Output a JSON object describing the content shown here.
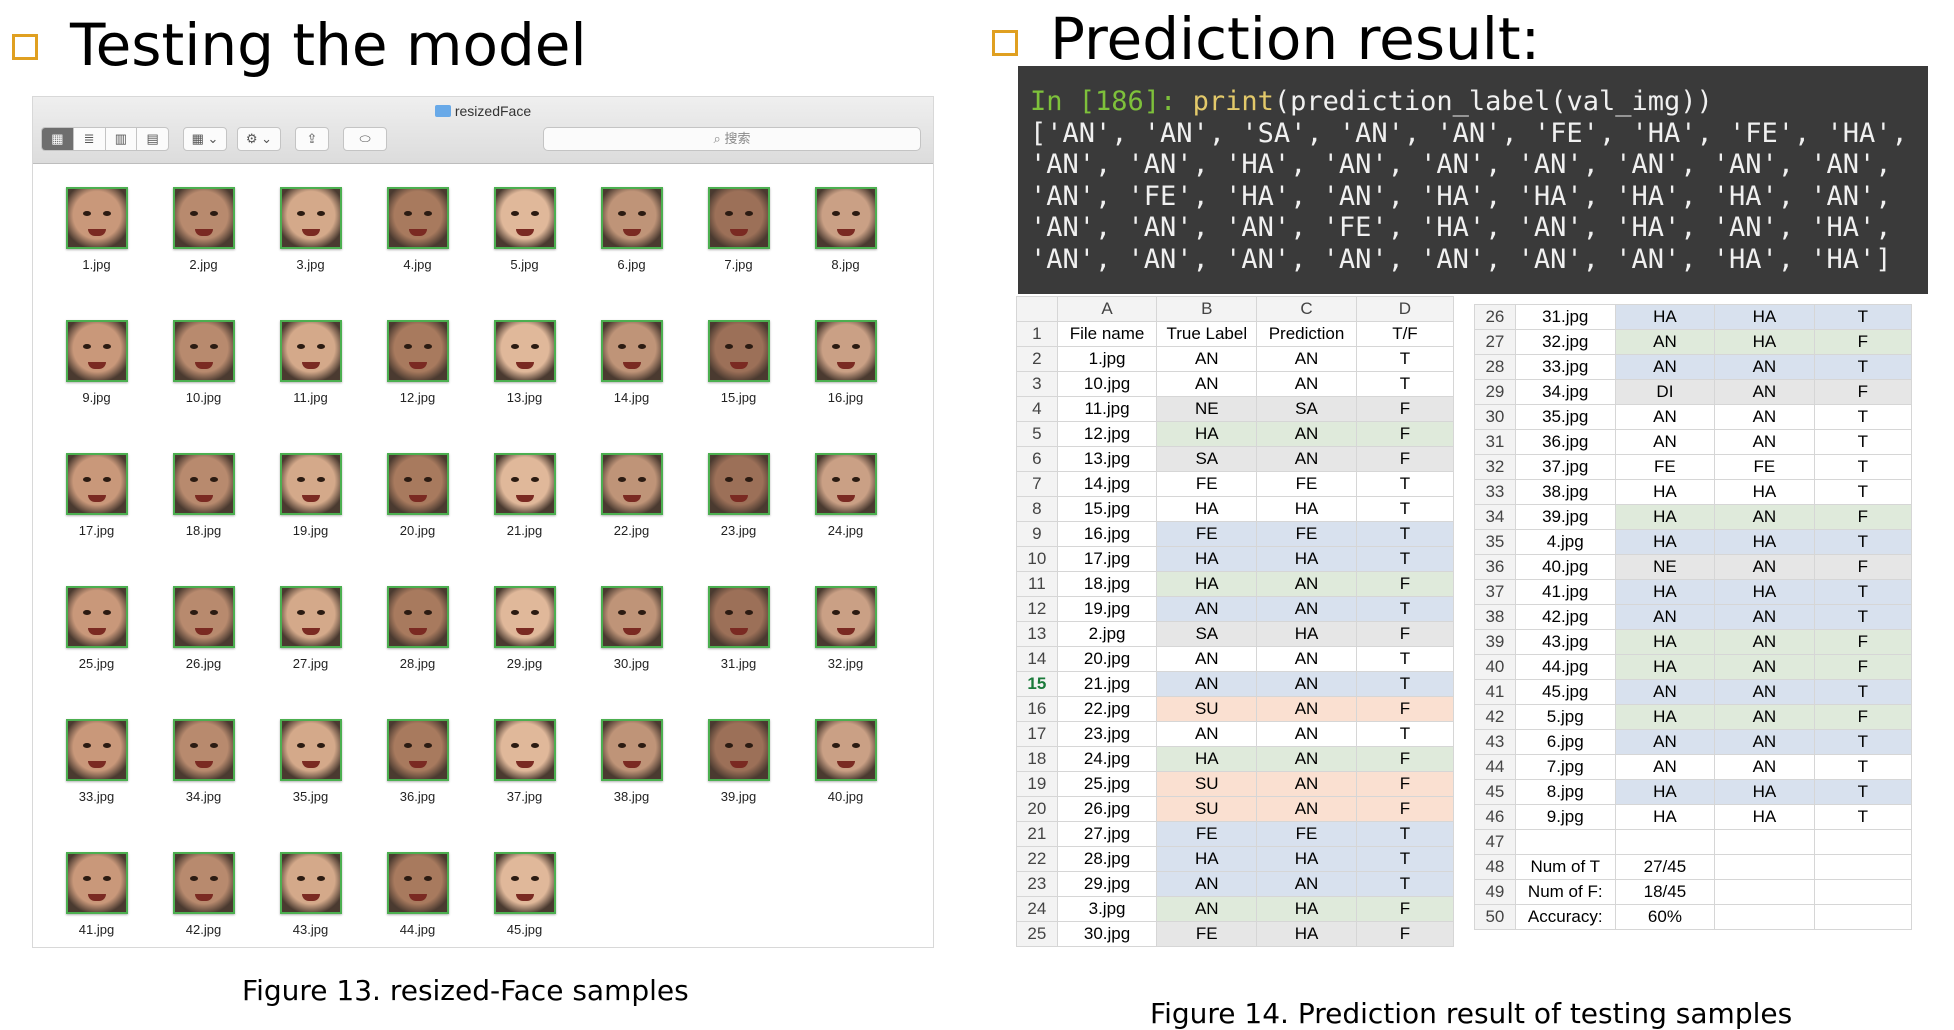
{
  "left_slide": {
    "heading": "Testing the model",
    "caption": "Figure 13. resized-Face samples"
  },
  "right_slide": {
    "heading": "Prediction result:",
    "caption": "Figure 14. Prediction result of testing samples"
  },
  "finder": {
    "title": "resizedFace",
    "search_placeholder": "搜索",
    "toolbar": {
      "view_icons": [
        "icon-view-icon",
        "list-view-icon",
        "column-view-icon",
        "cover-flow-icon"
      ],
      "view_glyphs": [
        "▦",
        "≣",
        "▥",
        "▤"
      ],
      "arrange_glyph": "▦ ⌄",
      "action_glyph": "⚙ ⌄",
      "share_glyph": "⇪",
      "tag_glyph": "⬭"
    },
    "files": [
      "1.jpg",
      "2.jpg",
      "3.jpg",
      "4.jpg",
      "5.jpg",
      "6.jpg",
      "7.jpg",
      "8.jpg",
      "9.jpg",
      "10.jpg",
      "11.jpg",
      "12.jpg",
      "13.jpg",
      "14.jpg",
      "15.jpg",
      "16.jpg",
      "17.jpg",
      "18.jpg",
      "19.jpg",
      "20.jpg",
      "21.jpg",
      "22.jpg",
      "23.jpg",
      "24.jpg",
      "25.jpg",
      "26.jpg",
      "27.jpg",
      "28.jpg",
      "29.jpg",
      "30.jpg",
      "31.jpg",
      "32.jpg",
      "33.jpg",
      "34.jpg",
      "35.jpg",
      "36.jpg",
      "37.jpg",
      "38.jpg",
      "39.jpg",
      "40.jpg",
      "41.jpg",
      "42.jpg",
      "43.jpg",
      "44.jpg",
      "45.jpg"
    ]
  },
  "terminal": {
    "prompt": "In [186]:",
    "call_fn": "print",
    "call_args": "(prediction_label(val_img))",
    "output_lines": [
      "['AN', 'AN', 'SA', 'AN', 'AN', 'FE', 'HA', 'FE', 'HA',",
      "'AN', 'AN', 'HA', 'AN', 'AN', 'AN', 'AN', 'AN', 'AN',",
      "'AN', 'FE', 'HA', 'AN', 'HA', 'HA', 'HA', 'HA', 'AN',",
      "'AN', 'AN', 'AN', 'FE', 'HA', 'AN', 'HA', 'AN', 'HA',",
      "'AN', 'AN', 'AN', 'AN', 'AN', 'AN', 'AN', 'HA', 'HA']"
    ]
  },
  "spreadsheet": {
    "columns": [
      "A",
      "B",
      "C",
      "D"
    ],
    "header_row": [
      "File name",
      "True Label",
      "Prediction",
      "T/F"
    ],
    "left_rows": [
      [
        "2",
        "1.jpg",
        "AN",
        "AN",
        "T",
        "white"
      ],
      [
        "3",
        "10.jpg",
        "AN",
        "AN",
        "T",
        "white"
      ],
      [
        "4",
        "11.jpg",
        "NE",
        "SA",
        "F",
        "grey"
      ],
      [
        "5",
        "12.jpg",
        "HA",
        "AN",
        "F",
        "green"
      ],
      [
        "6",
        "13.jpg",
        "SA",
        "AN",
        "F",
        "grey"
      ],
      [
        "7",
        "14.jpg",
        "FE",
        "FE",
        "T",
        "white"
      ],
      [
        "8",
        "15.jpg",
        "HA",
        "HA",
        "T",
        "white"
      ],
      [
        "9",
        "16.jpg",
        "FE",
        "FE",
        "T",
        "blue"
      ],
      [
        "10",
        "17.jpg",
        "HA",
        "HA",
        "T",
        "blue"
      ],
      [
        "11",
        "18.jpg",
        "HA",
        "AN",
        "F",
        "green"
      ],
      [
        "12",
        "19.jpg",
        "AN",
        "AN",
        "T",
        "blue"
      ],
      [
        "13",
        "2.jpg",
        "SA",
        "HA",
        "F",
        "grey"
      ],
      [
        "14",
        "20.jpg",
        "AN",
        "AN",
        "T",
        "white"
      ],
      [
        "15",
        "21.jpg",
        "AN",
        "AN",
        "T",
        "blue"
      ],
      [
        "16",
        "22.jpg",
        "SU",
        "AN",
        "F",
        "peach"
      ],
      [
        "17",
        "23.jpg",
        "AN",
        "AN",
        "T",
        "white"
      ],
      [
        "18",
        "24.jpg",
        "HA",
        "AN",
        "F",
        "green"
      ],
      [
        "19",
        "25.jpg",
        "SU",
        "AN",
        "F",
        "peach"
      ],
      [
        "20",
        "26.jpg",
        "SU",
        "AN",
        "F",
        "peach"
      ],
      [
        "21",
        "27.jpg",
        "FE",
        "FE",
        "T",
        "blue"
      ],
      [
        "22",
        "28.jpg",
        "HA",
        "HA",
        "T",
        "blue"
      ],
      [
        "23",
        "29.jpg",
        "AN",
        "AN",
        "T",
        "blue"
      ],
      [
        "24",
        "3.jpg",
        "AN",
        "HA",
        "F",
        "green"
      ],
      [
        "25",
        "30.jpg",
        "FE",
        "HA",
        "F",
        "grey"
      ]
    ],
    "right_rows": [
      [
        "26",
        "31.jpg",
        "HA",
        "HA",
        "T",
        "blue"
      ],
      [
        "27",
        "32.jpg",
        "AN",
        "HA",
        "F",
        "green"
      ],
      [
        "28",
        "33.jpg",
        "AN",
        "AN",
        "T",
        "blue"
      ],
      [
        "29",
        "34.jpg",
        "DI",
        "AN",
        "F",
        "grey"
      ],
      [
        "30",
        "35.jpg",
        "AN",
        "AN",
        "T",
        "white"
      ],
      [
        "31",
        "36.jpg",
        "AN",
        "AN",
        "T",
        "white"
      ],
      [
        "32",
        "37.jpg",
        "FE",
        "FE",
        "T",
        "white"
      ],
      [
        "33",
        "38.jpg",
        "HA",
        "HA",
        "T",
        "white"
      ],
      [
        "34",
        "39.jpg",
        "HA",
        "AN",
        "F",
        "green"
      ],
      [
        "35",
        "4.jpg",
        "HA",
        "HA",
        "T",
        "blue"
      ],
      [
        "36",
        "40.jpg",
        "NE",
        "AN",
        "F",
        "grey"
      ],
      [
        "37",
        "41.jpg",
        "HA",
        "HA",
        "T",
        "blue"
      ],
      [
        "38",
        "42.jpg",
        "AN",
        "AN",
        "T",
        "blue"
      ],
      [
        "39",
        "43.jpg",
        "HA",
        "AN",
        "F",
        "green"
      ],
      [
        "40",
        "44.jpg",
        "HA",
        "AN",
        "F",
        "green"
      ],
      [
        "41",
        "45.jpg",
        "AN",
        "AN",
        "T",
        "blue"
      ],
      [
        "42",
        "5.jpg",
        "HA",
        "AN",
        "F",
        "green"
      ],
      [
        "43",
        "6.jpg",
        "AN",
        "AN",
        "T",
        "blue"
      ],
      [
        "44",
        "7.jpg",
        "AN",
        "AN",
        "T",
        "white"
      ],
      [
        "45",
        "8.jpg",
        "HA",
        "HA",
        "T",
        "blue"
      ],
      [
        "46",
        "9.jpg",
        "HA",
        "HA",
        "T",
        "white"
      ],
      [
        "47",
        "",
        "",
        "",
        "",
        "white"
      ]
    ],
    "summary_rows": [
      [
        "48",
        "Num of T",
        "27/45"
      ],
      [
        "49",
        "Num of F:",
        "18/45"
      ],
      [
        "50",
        "Accuracy:",
        "60%"
      ]
    ],
    "colors": {
      "blue": "#d8e1ee",
      "green": "#dfeadb",
      "grey": "#e6e6e6",
      "peach": "#fae0d1"
    }
  }
}
